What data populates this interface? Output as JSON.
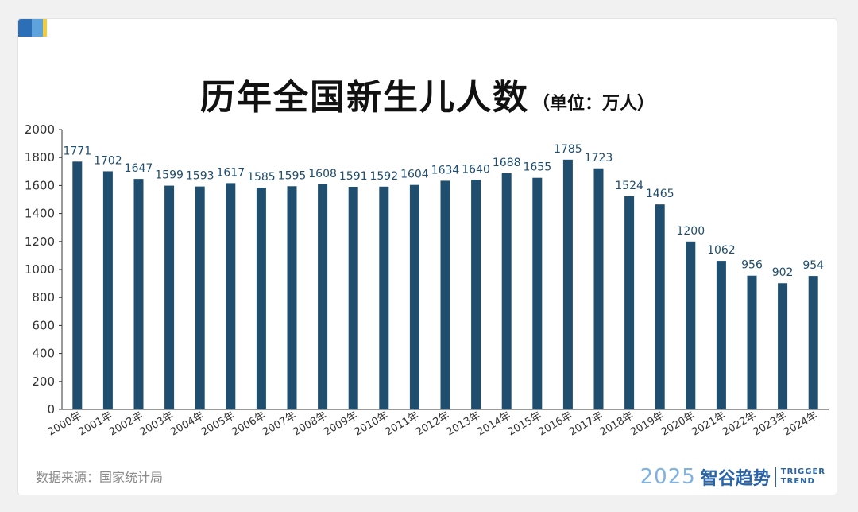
{
  "header": {
    "title": "历年全国新生儿人数",
    "unit": "（单位：万人）"
  },
  "footer": {
    "source": "数据来源：国家统计局",
    "brand_year": "2025",
    "brand_name": "智谷趋势",
    "brand_en_1": "TRIGGER",
    "brand_en_2": "TREND"
  },
  "colors": {
    "bar": "#1f4e6e",
    "label": "#1f4e6e",
    "axis": "#333333"
  },
  "chart_data": {
    "type": "bar",
    "title": "历年全国新生儿人数",
    "subtitle": "（单位：万人）",
    "xlabel": "",
    "ylabel": "",
    "ylim": [
      0,
      2000
    ],
    "yticks": [
      0,
      200,
      400,
      600,
      800,
      1000,
      1200,
      1400,
      1600,
      1800,
      2000
    ],
    "grid": false,
    "categories": [
      "2000年",
      "2001年",
      "2002年",
      "2003年",
      "2004年",
      "2005年",
      "2006年",
      "2007年",
      "2008年",
      "2009年",
      "2010年",
      "2011年",
      "2012年",
      "2013年",
      "2014年",
      "2015年",
      "2016年",
      "2017年",
      "2018年",
      "2019年",
      "2020年",
      "2021年",
      "2022年",
      "2023年",
      "2024年"
    ],
    "values": [
      1771,
      1702,
      1647,
      1599,
      1593,
      1617,
      1585,
      1595,
      1608,
      1591,
      1592,
      1604,
      1634,
      1640,
      1688,
      1655,
      1785,
      1723,
      1524,
      1465,
      1200,
      1062,
      956,
      902,
      954
    ],
    "data_labels": [
      "1771",
      "1702",
      "1647",
      "1599",
      "1593",
      "1617",
      "1585",
      "1595",
      "1608",
      "1591",
      "1592",
      "1604",
      "1634",
      "1640",
      "1688",
      "1655",
      "1785",
      "1723",
      "1524",
      "1465",
      "1200",
      "1062",
      "956",
      "902",
      "954"
    ]
  }
}
